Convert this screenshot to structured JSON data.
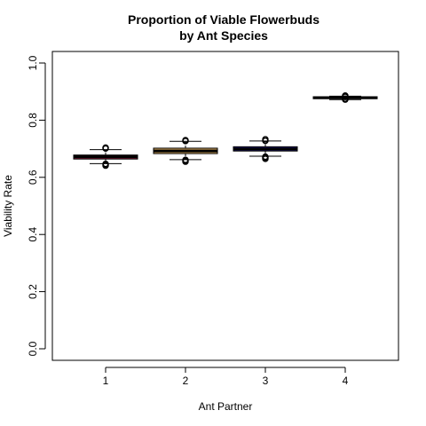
{
  "chart_data": {
    "type": "box",
    "title_lines": [
      "Proportion of Viable Flowerbuds",
      "by Ant Species"
    ],
    "xlabel": "Ant Partner",
    "ylabel": "Viability Rate",
    "ylim": [
      0.0,
      1.0
    ],
    "yticks": [
      "0.0",
      "0.2",
      "0.4",
      "0.6",
      "0.8",
      "1.0"
    ],
    "categories": [
      "1",
      "2",
      "3",
      "4"
    ],
    "boxes": [
      {
        "category": "1",
        "fill": "#8B1A3A",
        "whisker_low": 0.648,
        "q1": 0.664,
        "median": 0.672,
        "q3": 0.678,
        "whisker_high": 0.697,
        "outliers": [
          0.641,
          0.644,
          0.647,
          0.701,
          0.704
        ]
      },
      {
        "category": "2",
        "fill": "#C79A55",
        "whisker_low": 0.662,
        "q1": 0.683,
        "median": 0.692,
        "q3": 0.702,
        "whisker_high": 0.726,
        "outliers": [
          0.655,
          0.658,
          0.661,
          0.727,
          0.73
        ]
      },
      {
        "category": "3",
        "fill": "#2A1F8F",
        "whisker_low": 0.674,
        "q1": 0.692,
        "median": 0.699,
        "q3": 0.707,
        "whisker_high": 0.727,
        "outliers": [
          0.665,
          0.669,
          0.672,
          0.728,
          0.733
        ]
      },
      {
        "category": "4",
        "fill": "#AAAAAA",
        "whisker_low": 0.872,
        "q1": 0.875,
        "median": 0.879,
        "q3": 0.882,
        "whisker_high": 0.884,
        "outliers": [
          0.872,
          0.875,
          0.882,
          0.886
        ]
      }
    ]
  }
}
